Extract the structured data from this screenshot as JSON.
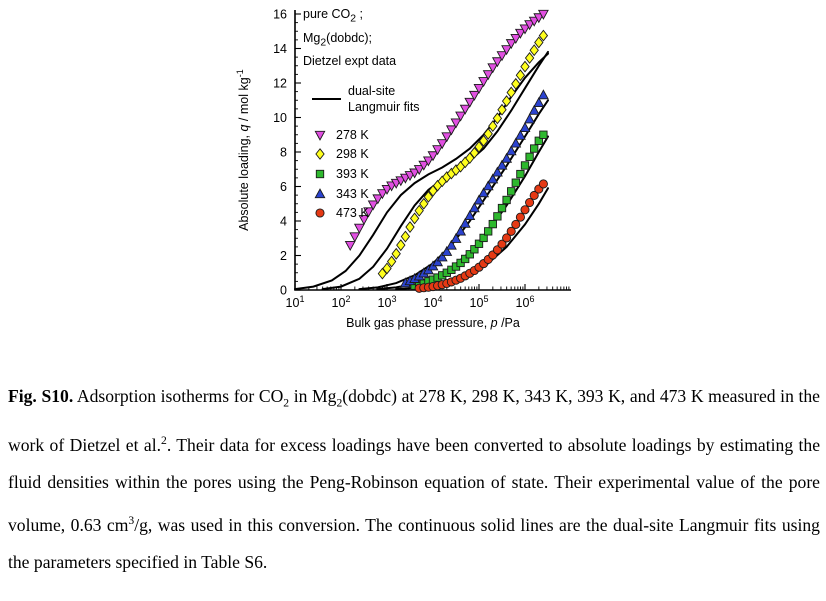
{
  "figure": {
    "caption_segments": [
      {
        "t": "Fig. S10.",
        "s": "b"
      },
      {
        "t": " Adsorption isotherms for CO"
      },
      {
        "t": "2",
        "s": "sub"
      },
      {
        "t": " in Mg"
      },
      {
        "t": "2",
        "s": "sub"
      },
      {
        "t": "(dobdc) at 278 K, 298 K, 343 K, 393 K, and 473 K measured in the work of Dietzel et al."
      },
      {
        "t": "2",
        "s": "sup"
      },
      {
        "t": ". Their data for excess loadings have been converted to absolute loadings by estimating the fluid densities within the pores using the Peng-Robinson equation of state. Their experimental value of the pore volume, 0.63 cm"
      },
      {
        "t": "3",
        "s": "sup"
      },
      {
        "t": "/g, was used in this conversion. The continuous solid lines are the dual-site Langmuir fits using the parameters specified in Table S6."
      }
    ]
  },
  "chart_data": {
    "type": "scatter",
    "x_scale": "log",
    "xlabel": "Bulk gas phase pressure, p /Pa",
    "ylabel": "Absolute loading, q / mol kg-1",
    "xlabel_segments": [
      {
        "t": "Bulk gas phase pressure, "
      },
      {
        "t": "p",
        "s": "i"
      },
      {
        "t": " /Pa"
      }
    ],
    "ylabel_segments": [
      {
        "t": "Absolute loading, "
      },
      {
        "t": "q",
        "s": "i"
      },
      {
        "t": " / mol kg"
      },
      {
        "t": "-1",
        "s": "sup"
      }
    ],
    "x_range_log10": [
      1,
      7
    ],
    "x_tick_exponents": [
      1,
      2,
      3,
      4,
      5,
      6
    ],
    "ylim": [
      0,
      16
    ],
    "y_ticks": [
      0,
      2,
      4,
      6,
      8,
      10,
      12,
      14,
      16
    ],
    "legend": {
      "header": [
        [
          {
            "t": "pure CO"
          },
          {
            "t": "2",
            "s": "sub"
          },
          {
            "t": " ;"
          }
        ],
        [
          {
            "t": "Mg"
          },
          {
            "t": "2",
            "s": "sub"
          },
          {
            "t": "(dobdc);"
          }
        ],
        [
          {
            "t": "Dietzel expt data"
          }
        ]
      ],
      "fit_label_line1": "dual-site",
      "fit_label_line2": "Langmuir fits"
    },
    "series": [
      {
        "name": "278 K",
        "marker": "triangle-down",
        "color": "#e14fe1",
        "points": [
          [
            2.2,
            2.6
          ],
          [
            2.3,
            3.1
          ],
          [
            2.4,
            3.6
          ],
          [
            2.5,
            4.1
          ],
          [
            2.6,
            4.55
          ],
          [
            2.7,
            4.95
          ],
          [
            2.8,
            5.3
          ],
          [
            2.9,
            5.6
          ],
          [
            3.0,
            5.85
          ],
          [
            3.1,
            6.05
          ],
          [
            3.2,
            6.2
          ],
          [
            3.3,
            6.35
          ],
          [
            3.4,
            6.5
          ],
          [
            3.5,
            6.65
          ],
          [
            3.6,
            6.8
          ],
          [
            3.7,
            7.0
          ],
          [
            3.8,
            7.25
          ],
          [
            3.9,
            7.5
          ],
          [
            4.0,
            7.8
          ],
          [
            4.1,
            8.15
          ],
          [
            4.2,
            8.5
          ],
          [
            4.3,
            8.9
          ],
          [
            4.4,
            9.3
          ],
          [
            4.5,
            9.7
          ],
          [
            4.6,
            10.1
          ],
          [
            4.7,
            10.5
          ],
          [
            4.8,
            10.9
          ],
          [
            4.9,
            11.3
          ],
          [
            5.0,
            11.7
          ],
          [
            5.1,
            12.1
          ],
          [
            5.2,
            12.5
          ],
          [
            5.3,
            12.9
          ],
          [
            5.4,
            13.25
          ],
          [
            5.5,
            13.6
          ],
          [
            5.6,
            13.95
          ],
          [
            5.7,
            14.3
          ],
          [
            5.8,
            14.6
          ],
          [
            5.9,
            14.9
          ],
          [
            6.0,
            15.15
          ],
          [
            6.1,
            15.4
          ],
          [
            6.2,
            15.6
          ],
          [
            6.3,
            15.8
          ],
          [
            6.4,
            16.0
          ]
        ],
        "fit": [
          [
            1.0,
            0.05
          ],
          [
            1.4,
            0.2
          ],
          [
            1.8,
            0.55
          ],
          [
            2.1,
            1.1
          ],
          [
            2.4,
            2.0
          ],
          [
            2.7,
            3.2
          ],
          [
            3.0,
            4.5
          ],
          [
            3.3,
            5.5
          ],
          [
            3.6,
            6.2
          ],
          [
            3.9,
            6.7
          ],
          [
            4.2,
            7.1
          ],
          [
            4.5,
            7.6
          ],
          [
            4.8,
            8.2
          ],
          [
            5.1,
            9.0
          ],
          [
            5.4,
            10.0
          ],
          [
            5.7,
            11.2
          ],
          [
            6.0,
            12.3
          ],
          [
            6.3,
            13.2
          ],
          [
            6.5,
            13.7
          ]
        ]
      },
      {
        "name": "298 K",
        "marker": "diamond",
        "color": "#ffff1e",
        "points": [
          [
            2.9,
            0.95
          ],
          [
            3.0,
            1.25
          ],
          [
            3.1,
            1.65
          ],
          [
            3.2,
            2.1
          ],
          [
            3.3,
            2.6
          ],
          [
            3.4,
            3.1
          ],
          [
            3.5,
            3.65
          ],
          [
            3.6,
            4.15
          ],
          [
            3.7,
            4.6
          ],
          [
            3.8,
            5.0
          ],
          [
            3.9,
            5.4
          ],
          [
            4.0,
            5.75
          ],
          [
            4.1,
            6.05
          ],
          [
            4.2,
            6.3
          ],
          [
            4.3,
            6.55
          ],
          [
            4.4,
            6.75
          ],
          [
            4.5,
            6.95
          ],
          [
            4.6,
            7.15
          ],
          [
            4.7,
            7.4
          ],
          [
            4.8,
            7.65
          ],
          [
            4.9,
            7.95
          ],
          [
            5.0,
            8.3
          ],
          [
            5.1,
            8.65
          ],
          [
            5.2,
            9.05
          ],
          [
            5.3,
            9.5
          ],
          [
            5.4,
            9.95
          ],
          [
            5.5,
            10.45
          ],
          [
            5.6,
            10.95
          ],
          [
            5.7,
            11.45
          ],
          [
            5.8,
            11.95
          ],
          [
            5.9,
            12.45
          ],
          [
            6.0,
            12.95
          ],
          [
            6.1,
            13.45
          ],
          [
            6.2,
            13.9
          ],
          [
            6.3,
            14.35
          ],
          [
            6.4,
            14.75
          ]
        ],
        "fit": [
          [
            1.6,
            0.05
          ],
          [
            2.0,
            0.2
          ],
          [
            2.4,
            0.65
          ],
          [
            2.7,
            1.35
          ],
          [
            3.0,
            2.4
          ],
          [
            3.3,
            3.7
          ],
          [
            3.6,
            4.9
          ],
          [
            3.9,
            5.8
          ],
          [
            4.2,
            6.4
          ],
          [
            4.5,
            6.9
          ],
          [
            4.8,
            7.5
          ],
          [
            5.1,
            8.2
          ],
          [
            5.4,
            9.2
          ],
          [
            5.7,
            10.4
          ],
          [
            6.0,
            11.7
          ],
          [
            6.3,
            13.0
          ],
          [
            6.5,
            13.8
          ]
        ]
      },
      {
        "name": "393 K",
        "marker": "square",
        "color": "#2eb82e",
        "points": [
          [
            3.6,
            0.25
          ],
          [
            3.7,
            0.32
          ],
          [
            3.8,
            0.4
          ],
          [
            3.9,
            0.5
          ],
          [
            4.0,
            0.6
          ],
          [
            4.1,
            0.72
          ],
          [
            4.2,
            0.85
          ],
          [
            4.3,
            1.0
          ],
          [
            4.4,
            1.17
          ],
          [
            4.5,
            1.36
          ],
          [
            4.6,
            1.57
          ],
          [
            4.7,
            1.8
          ],
          [
            4.8,
            2.07
          ],
          [
            4.9,
            2.36
          ],
          [
            5.0,
            2.68
          ],
          [
            5.1,
            3.02
          ],
          [
            5.2,
            3.4
          ],
          [
            5.3,
            3.82
          ],
          [
            5.4,
            4.27
          ],
          [
            5.5,
            4.75
          ],
          [
            5.6,
            5.22
          ],
          [
            5.7,
            5.72
          ],
          [
            5.8,
            6.22
          ],
          [
            5.9,
            6.72
          ],
          [
            6.0,
            7.22
          ],
          [
            6.1,
            7.72
          ],
          [
            6.2,
            8.2
          ],
          [
            6.3,
            8.65
          ],
          [
            6.4,
            9.0
          ]
        ],
        "fit": [
          [
            2.8,
            0.05
          ],
          [
            3.2,
            0.15
          ],
          [
            3.6,
            0.35
          ],
          [
            4.0,
            0.7
          ],
          [
            4.4,
            1.3
          ],
          [
            4.8,
            2.2
          ],
          [
            5.2,
            3.4
          ],
          [
            5.6,
            4.9
          ],
          [
            6.0,
            6.6
          ],
          [
            6.3,
            8.0
          ],
          [
            6.5,
            8.9
          ]
        ]
      },
      {
        "name": "343 K",
        "marker": "triangle-up",
        "color": "#2b43d0",
        "points": [
          [
            3.4,
            0.4
          ],
          [
            3.5,
            0.52
          ],
          [
            3.6,
            0.65
          ],
          [
            3.7,
            0.8
          ],
          [
            3.8,
            0.97
          ],
          [
            3.9,
            1.15
          ],
          [
            4.0,
            1.38
          ],
          [
            4.1,
            1.62
          ],
          [
            4.2,
            1.9
          ],
          [
            4.3,
            2.22
          ],
          [
            4.4,
            2.58
          ],
          [
            4.5,
            2.97
          ],
          [
            4.6,
            3.4
          ],
          [
            4.7,
            3.85
          ],
          [
            4.8,
            4.3
          ],
          [
            4.9,
            4.75
          ],
          [
            5.0,
            5.2
          ],
          [
            5.1,
            5.62
          ],
          [
            5.2,
            6.02
          ],
          [
            5.3,
            6.42
          ],
          [
            5.4,
            6.82
          ],
          [
            5.5,
            7.22
          ],
          [
            5.6,
            7.62
          ],
          [
            5.7,
            8.05
          ],
          [
            5.8,
            8.5
          ],
          [
            5.9,
            8.95
          ],
          [
            6.0,
            9.4
          ],
          [
            6.1,
            9.9
          ],
          [
            6.2,
            10.4
          ],
          [
            6.3,
            10.85
          ],
          [
            6.4,
            11.3
          ]
        ],
        "fit": [
          [
            2.4,
            0.05
          ],
          [
            2.8,
            0.15
          ],
          [
            3.2,
            0.4
          ],
          [
            3.6,
            0.85
          ],
          [
            4.0,
            1.55
          ],
          [
            4.4,
            2.6
          ],
          [
            4.8,
            4.0
          ],
          [
            5.2,
            5.6
          ],
          [
            5.6,
            7.2
          ],
          [
            6.0,
            8.9
          ],
          [
            6.3,
            10.2
          ],
          [
            6.5,
            11.0
          ]
        ]
      },
      {
        "name": "473 K",
        "marker": "circle",
        "color": "#e53914",
        "points": [
          [
            3.7,
            0.1
          ],
          [
            3.8,
            0.13
          ],
          [
            3.9,
            0.16
          ],
          [
            4.0,
            0.2
          ],
          [
            4.1,
            0.25
          ],
          [
            4.2,
            0.31
          ],
          [
            4.3,
            0.38
          ],
          [
            4.4,
            0.47
          ],
          [
            4.5,
            0.57
          ],
          [
            4.6,
            0.68
          ],
          [
            4.7,
            0.82
          ],
          [
            4.8,
            0.97
          ],
          [
            4.9,
            1.13
          ],
          [
            5.0,
            1.32
          ],
          [
            5.1,
            1.53
          ],
          [
            5.2,
            1.77
          ],
          [
            5.3,
            2.03
          ],
          [
            5.4,
            2.33
          ],
          [
            5.5,
            2.66
          ],
          [
            5.6,
            3.02
          ],
          [
            5.7,
            3.4
          ],
          [
            5.8,
            3.8
          ],
          [
            5.9,
            4.22
          ],
          [
            6.0,
            4.65
          ],
          [
            6.1,
            5.07
          ],
          [
            6.2,
            5.48
          ],
          [
            6.3,
            5.85
          ],
          [
            6.4,
            6.15
          ]
        ],
        "fit": [
          [
            3.2,
            0.05
          ],
          [
            3.6,
            0.12
          ],
          [
            4.0,
            0.25
          ],
          [
            4.4,
            0.5
          ],
          [
            4.8,
            0.9
          ],
          [
            5.2,
            1.55
          ],
          [
            5.6,
            2.5
          ],
          [
            6.0,
            3.8
          ],
          [
            6.3,
            5.0
          ],
          [
            6.5,
            5.9
          ]
        ]
      }
    ]
  }
}
